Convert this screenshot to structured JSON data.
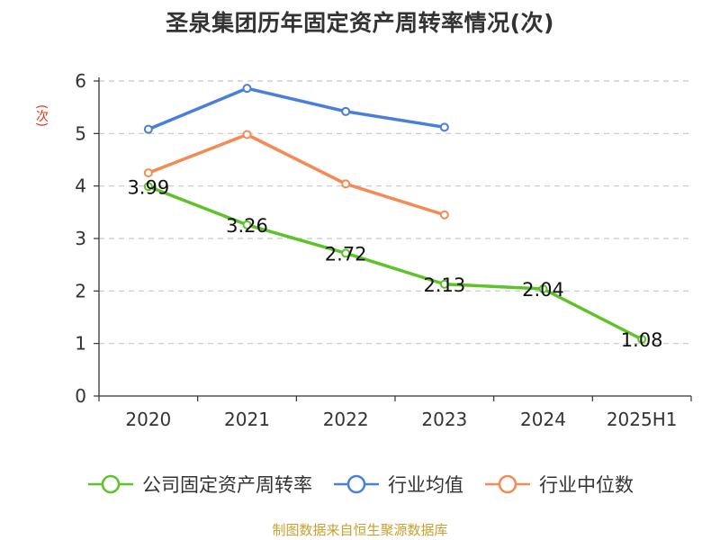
{
  "title": "圣泉集团历年固定资产周转率情况(次)",
  "y_unit": "(次)",
  "source": "制图数据来自恒生聚源数据库",
  "chart_data": {
    "type": "line",
    "title": "圣泉集团历年固定资产周转率情况(次)",
    "ylabel": "(次)",
    "xlabel": "",
    "categories": [
      "2020",
      "2021",
      "2022",
      "2023",
      "2024",
      "2025H1"
    ],
    "ylim": [
      0,
      6
    ],
    "yticks": [
      0,
      1,
      2,
      3,
      4,
      5,
      6
    ],
    "grid": true,
    "legend_position": "bottom",
    "series": [
      {
        "name": "公司固定资产周转率",
        "color": "#5ec229",
        "show_labels": true,
        "values": [
          3.99,
          3.26,
          2.72,
          2.13,
          2.04,
          1.08
        ],
        "labels": [
          "3.99",
          "3.26",
          "2.72",
          "2.13",
          "2.04",
          "1.08"
        ]
      },
      {
        "name": "行业均值",
        "color": "#4a7fd9",
        "show_labels": false,
        "values": [
          5.08,
          5.86,
          5.42,
          5.12,
          null,
          null
        ]
      },
      {
        "name": "行业中位数",
        "color": "#f48a54",
        "show_labels": false,
        "values": [
          4.25,
          4.98,
          4.04,
          3.45,
          null,
          null
        ]
      }
    ]
  }
}
